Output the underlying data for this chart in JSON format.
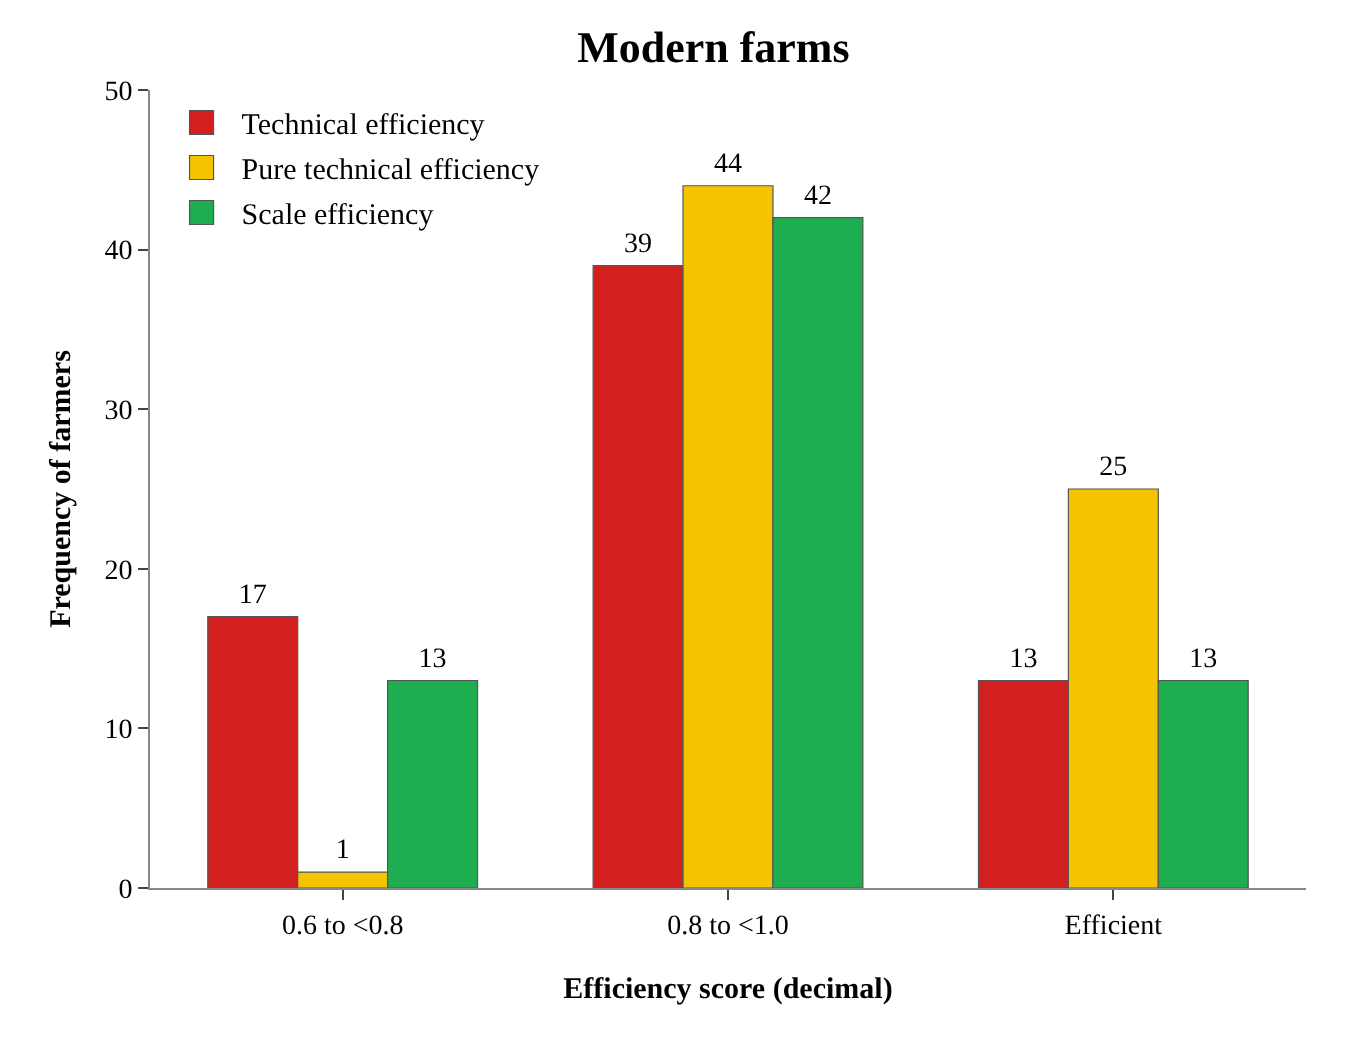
{
  "chart_data": {
    "type": "bar",
    "title": "Modern farms",
    "xlabel": "Efficiency score (decimal)",
    "ylabel": "Frequency of farmers",
    "categories": [
      "0.6 to <0.8",
      "0.8 to <1.0",
      "Efficient"
    ],
    "series": [
      {
        "name": "Technical efficiency",
        "color": "#d41f1f",
        "values": [
          17,
          39,
          13
        ]
      },
      {
        "name": "Pure technical efficiency",
        "color": "#f5c400",
        "values": [
          1,
          44,
          25
        ]
      },
      {
        "name": "Scale efficiency",
        "color": "#1fae4f",
        "values": [
          13,
          42,
          13
        ]
      }
    ],
    "ylim": [
      0,
      50
    ],
    "yticks": [
      0,
      10,
      20,
      30,
      40,
      50
    ],
    "grid": false,
    "legend": "top left",
    "data_labels": true
  }
}
